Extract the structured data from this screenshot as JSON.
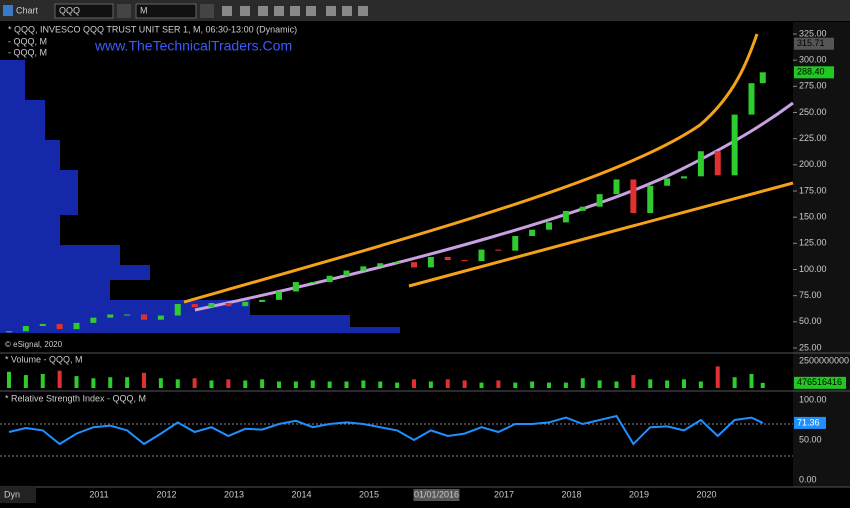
{
  "toolbar": {
    "title": "Chart",
    "symbol": "QQQ",
    "interval": "M"
  },
  "legend": [
    "* QQQ, INVESCO QQQ TRUST UNIT SER 1, M, 06:30-13:00 (Dynamic)",
    "- QQQ, M",
    "- QQQ, M"
  ],
  "watermark": "www.TheTechnicalTraders.Com",
  "copyright": "© eSignal, 2020",
  "price": {
    "dates": [
      "2009-09",
      "2009-12",
      "2010-03",
      "2010-06",
      "2010-09",
      "2010-12",
      "2011-03",
      "2011-06",
      "2011-09",
      "2011-12",
      "2012-03",
      "2012-06",
      "2012-09",
      "2012-12",
      "2013-03",
      "2013-06",
      "2013-09",
      "2013-12",
      "2014-03",
      "2014-06",
      "2014-09",
      "2014-12",
      "2015-03",
      "2015-06",
      "2015-09",
      "2015-12",
      "2016-03",
      "2016-06",
      "2016-09",
      "2016-12",
      "2017-03",
      "2017-06",
      "2017-09",
      "2017-12",
      "2018-03",
      "2018-06",
      "2018-09",
      "2018-12",
      "2019-03",
      "2019-06",
      "2019-09",
      "2019-12",
      "2020-03",
      "2020-06",
      "2020-09",
      "2020-11"
    ],
    "close": [
      41,
      46,
      48,
      43,
      49,
      54,
      57,
      57,
      52,
      56,
      67,
      64,
      68,
      65,
      69,
      71,
      79,
      88,
      88,
      94,
      99,
      103,
      106,
      107,
      102,
      112,
      109,
      108,
      119,
      118,
      132,
      138,
      145,
      156,
      160,
      172,
      186,
      154,
      180,
      187,
      189,
      213,
      190,
      248,
      278,
      288.4
    ],
    "ylim": [
      25,
      325
    ],
    "yticks": [
      {
        "value": 325,
        "label": "325.00"
      },
      {
        "value": 300,
        "label": "300.00"
      },
      {
        "value": 275,
        "label": "275.00"
      },
      {
        "value": 250,
        "label": "250.00"
      },
      {
        "value": 225,
        "label": "225.00"
      },
      {
        "value": 200,
        "label": "200.00"
      },
      {
        "value": 175,
        "label": "175.00"
      },
      {
        "value": 150,
        "label": "150.00"
      },
      {
        "value": 125,
        "label": "125.00"
      },
      {
        "value": 100,
        "label": "100.00"
      },
      {
        "value": 75,
        "label": "75.00"
      },
      {
        "value": 50,
        "label": "50.00"
      },
      {
        "value": 25,
        "label": "25.00"
      }
    ],
    "high_label": {
      "value": 315.71,
      "label": "315.71"
    },
    "last_label": {
      "value": 288.4,
      "label": "288.40"
    }
  },
  "volume": {
    "title": "* Volume - QQQ, M",
    "values": [
      1500000000,
      1200000000,
      1300000000,
      1600000000,
      1100000000,
      900000000,
      1000000000,
      1000000000,
      1400000000,
      900000000,
      800000000,
      900000000,
      700000000,
      800000000,
      700000000,
      800000000,
      600000000,
      600000000,
      700000000,
      600000000,
      600000000,
      700000000,
      600000000,
      500000000,
      800000000,
      600000000,
      800000000,
      700000000,
      500000000,
      700000000,
      500000000,
      600000000,
      500000000,
      500000000,
      900000000,
      700000000,
      600000000,
      1200000000,
      800000000,
      700000000,
      800000000,
      600000000,
      2000000000,
      1000000000,
      1300000000,
      476516416
    ],
    "ylim": [
      0,
      2500000000
    ],
    "yticks": [
      2500000000
    ],
    "last_label": {
      "value": 476516416,
      "label": "476516416"
    }
  },
  "rsi": {
    "title": "* Relative Strength Index - QQQ, M",
    "values": [
      60,
      65,
      62,
      45,
      58,
      66,
      68,
      62,
      45,
      58,
      72,
      60,
      66,
      55,
      64,
      63,
      70,
      74,
      66,
      70,
      72,
      70,
      66,
      62,
      50,
      62,
      55,
      58,
      66,
      60,
      70,
      70,
      72,
      78,
      70,
      75,
      80,
      45,
      66,
      67,
      62,
      75,
      55,
      75,
      78,
      71.36
    ],
    "ylim": [
      0,
      100
    ],
    "yticks": [
      {
        "value": 100,
        "label": "100.00"
      },
      {
        "value": 50,
        "label": "50.00"
      },
      {
        "value": 0,
        "label": "0.00"
      }
    ],
    "levels": [
      70,
      30
    ],
    "last_label": {
      "value": 71.36,
      "label": "71.36"
    }
  },
  "x_axis": [
    "2011",
    "2012",
    "2013",
    "2014",
    "2015",
    "01/01/2016",
    "2017",
    "2018",
    "2019",
    "2020"
  ],
  "status": "Dyn"
}
